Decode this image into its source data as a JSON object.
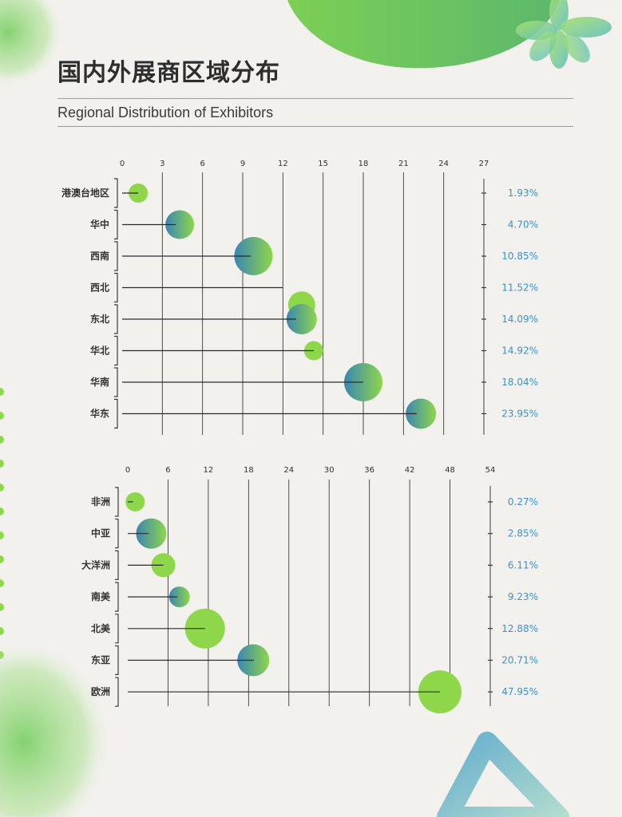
{
  "page": {
    "title": "国内外展商区域分布",
    "subtitle": "Regional Distribution of Exhibitors"
  },
  "colors": {
    "green": "#8ed64a",
    "teal": "#3a86b2",
    "percent_text": "#3a93c6",
    "line": "#2b2b2b"
  },
  "chart_data": [
    {
      "type": "lollipop",
      "categories": [
        "港澳台地区",
        "华中",
        "西南",
        "西北",
        "东北",
        "华北",
        "华南",
        "华东"
      ],
      "x_ticks": [
        0,
        3,
        6,
        9,
        12,
        15,
        18,
        21,
        24,
        27
      ],
      "xlim": [
        0,
        27
      ],
      "percent_labels": [
        "1.93%",
        "4.70%",
        "10.85%",
        "11.52%",
        "14.09%",
        "14.92%",
        "18.04%",
        "23.95%"
      ],
      "line_end": [
        1.2,
        4.0,
        9.6,
        12.0,
        13.0,
        14.3,
        18.0,
        22.0
      ],
      "bubbles": [
        {
          "x": 1.2,
          "r": 12,
          "style": "green"
        },
        {
          "x": 4.3,
          "r": 18,
          "style": "gradient"
        },
        {
          "x": 9.8,
          "r": 24,
          "style": "gradient"
        },
        {
          "x": 13.4,
          "r": 17,
          "style": "green",
          "offset": 0.4
        },
        {
          "x": 13.4,
          "r": 19,
          "style": "gradient"
        },
        {
          "x": 14.3,
          "r": 12,
          "style": "green"
        },
        {
          "x": 18.0,
          "r": 24,
          "style": "gradient"
        },
        {
          "x": 22.3,
          "r": 19,
          "style": "gradient"
        }
      ]
    },
    {
      "type": "lollipop",
      "categories": [
        "非洲",
        "中亚",
        "大洋洲",
        "南美",
        "北美",
        "东亚",
        "欧洲"
      ],
      "x_ticks": [
        0,
        6,
        12,
        18,
        24,
        30,
        36,
        42,
        48,
        54
      ],
      "xlim": [
        0,
        54
      ],
      "percent_labels": [
        "0.27%",
        "2.85%",
        "6.11%",
        "9.23%",
        "12.88%",
        "20.71%",
        "47.95%"
      ],
      "line_end": [
        0.8,
        3.1,
        5.3,
        7.4,
        11.5,
        18.8,
        46.5
      ],
      "bubbles": [
        {
          "x": 1.1,
          "r": 12,
          "style": "green"
        },
        {
          "x": 3.5,
          "r": 19,
          "style": "gradient"
        },
        {
          "x": 5.3,
          "r": 15,
          "style": "green"
        },
        {
          "x": 7.7,
          "r": 13,
          "style": "gradient"
        },
        {
          "x": 11.5,
          "r": 25,
          "style": "green"
        },
        {
          "x": 18.7,
          "r": 20,
          "style": "gradient"
        },
        {
          "x": 46.5,
          "r": 27,
          "style": "green"
        }
      ]
    }
  ]
}
